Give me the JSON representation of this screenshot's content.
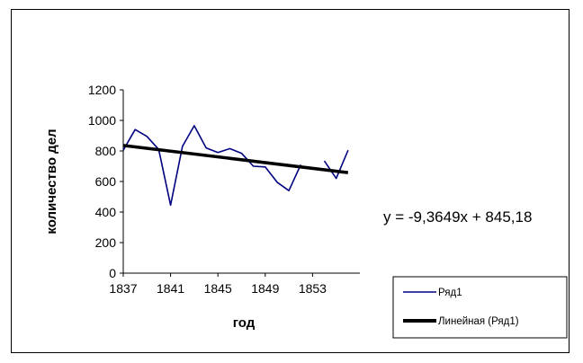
{
  "chart_data": {
    "type": "line",
    "title": "",
    "xlabel": "год",
    "ylabel": "количество дел",
    "x_range": [
      1837,
      1857
    ],
    "x_tick_labels": [
      "1837",
      "1841",
      "1845",
      "1849",
      "1853"
    ],
    "x_tick_values": [
      1837,
      1841,
      1845,
      1849,
      1853
    ],
    "ylim": [
      0,
      1200
    ],
    "y_ticks": [
      0,
      200,
      400,
      600,
      800,
      1000,
      1200
    ],
    "grid": false,
    "legend_position": "bottom-right",
    "series": [
      {
        "name": "Ряд1",
        "color": "#000080",
        "points": [
          {
            "x": 1837,
            "y": 805
          },
          {
            "x": 1838,
            "y": 940
          },
          {
            "x": 1839,
            "y": 895
          },
          {
            "x": 1840,
            "y": 810
          },
          {
            "x": 1841,
            "y": 445
          },
          {
            "x": 1842,
            "y": 830
          },
          {
            "x": 1843,
            "y": 965
          },
          {
            "x": 1844,
            "y": 820
          },
          {
            "x": 1845,
            "y": 790
          },
          {
            "x": 1846,
            "y": 815
          },
          {
            "x": 1847,
            "y": 785
          },
          {
            "x": 1848,
            "y": 700
          },
          {
            "x": 1849,
            "y": 695
          },
          {
            "x": 1850,
            "y": 595
          },
          {
            "x": 1851,
            "y": 540
          },
          {
            "x": 1852,
            "y": 710
          },
          {
            "x": 1853,
            "y": null
          },
          {
            "x": 1854,
            "y": 735
          },
          {
            "x": 1855,
            "y": 620
          },
          {
            "x": 1856,
            "y": 805
          }
        ]
      },
      {
        "name": "Линейная (Ряд1)",
        "color": "#000000",
        "points": [
          {
            "x": 1837,
            "y": 836
          },
          {
            "x": 1856,
            "y": 658
          }
        ]
      }
    ],
    "annotations": [
      {
        "text": "y = -9,3649x + 845,18"
      }
    ]
  }
}
